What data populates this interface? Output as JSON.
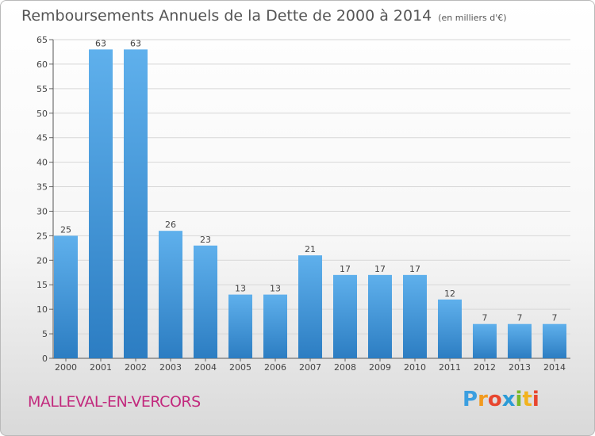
{
  "title": "Remboursements Annuels de la Dette de 2000 à 2014",
  "unit_label": "(en milliers d'€)",
  "commune": "MALLEVAL-EN-VERCORS",
  "logo": {
    "letters": [
      "P",
      "r",
      "o",
      "x",
      "i",
      "t",
      "i"
    ],
    "colors": [
      "#3b9fe0",
      "#f29a1e",
      "#e8462f",
      "#2c9bd6",
      "#7ab929",
      "#f2b31e",
      "#e8462f"
    ]
  },
  "colors": {
    "bar_top": "#5fb0ec",
    "bar_bottom": "#2c7dc2",
    "grid": "#d7d7d7",
    "text": "#444444",
    "commune": "#c2297d"
  },
  "chart_data": {
    "type": "bar",
    "categories": [
      "2000",
      "2001",
      "2002",
      "2003",
      "2004",
      "2005",
      "2006",
      "2007",
      "2008",
      "2009",
      "2010",
      "2011",
      "2012",
      "2013",
      "2014"
    ],
    "values": [
      25,
      63,
      63,
      26,
      23,
      13,
      13,
      21,
      17,
      17,
      17,
      12,
      7,
      7,
      7
    ],
    "ylim": [
      0,
      65
    ],
    "yticks": [
      0,
      5,
      10,
      15,
      20,
      25,
      30,
      35,
      40,
      45,
      50,
      55,
      60,
      65
    ],
    "grid": true,
    "data_labels": true,
    "legend": "none"
  }
}
